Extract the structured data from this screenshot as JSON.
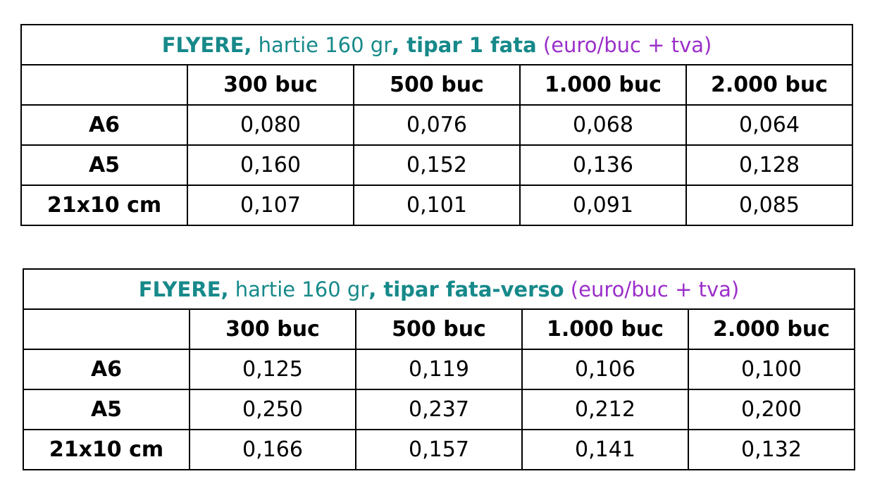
{
  "tables": [
    {
      "title": [
        {
          "text": "FLYERE,",
          "bold": true,
          "color": "#17898a"
        },
        {
          "text": " hartie 160 gr",
          "bold": false,
          "color": "#17898a"
        },
        {
          "text": ", tipar 1 fata",
          "bold": true,
          "color": "#17898a"
        },
        {
          "text": " (euro/buc + tva)",
          "bold": false,
          "color": "#9b2fc9"
        }
      ],
      "header": [
        "300 buc",
        "500 buc",
        "1.000 buc",
        "2.000 buc"
      ],
      "rows": [
        {
          "label": "A6",
          "values": [
            "0,080",
            "0,076",
            "0,068",
            "0,064"
          ]
        },
        {
          "label": "A5",
          "values": [
            "0,160",
            "0,152",
            "0,136",
            "0,128"
          ]
        },
        {
          "label": "21x10 cm",
          "values": [
            "0,107",
            "0,101",
            "0,091",
            "0,085"
          ]
        }
      ]
    },
    {
      "title": [
        {
          "text": "FLYERE,",
          "bold": true,
          "color": "#17898a"
        },
        {
          "text": " hartie 160 gr",
          "bold": false,
          "color": "#17898a"
        },
        {
          "text": ", tipar fata-verso",
          "bold": true,
          "color": "#17898a"
        },
        {
          "text": " (euro/buc + tva)",
          "bold": false,
          "color": "#9b2fc9"
        }
      ],
      "header": [
        "300 buc",
        "500 buc",
        "1.000 buc",
        "2.000 buc"
      ],
      "rows": [
        {
          "label": "A6",
          "values": [
            "0,125",
            "0,119",
            "0,106",
            "0,100"
          ]
        },
        {
          "label": "A5",
          "values": [
            "0,250",
            "0,237",
            "0,212",
            "0,200"
          ]
        },
        {
          "label": "21x10 cm",
          "values": [
            "0,166",
            "0,157",
            "0,141",
            "0,132"
          ]
        }
      ]
    }
  ]
}
